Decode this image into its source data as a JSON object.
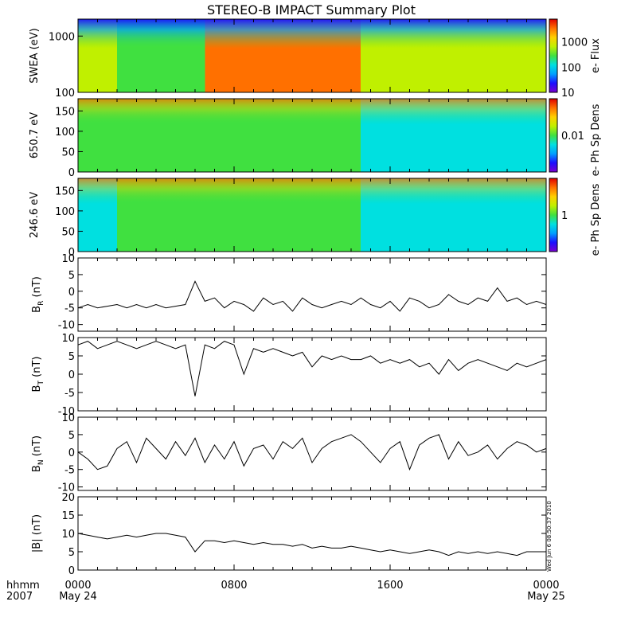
{
  "title": "STEREO-B IMPACT Summary Plot",
  "timestamp": "Wed Jun  6 08:50:37 2010",
  "time_axis": {
    "label_top": "hhmm",
    "label_bottom": "2007",
    "ticks": [
      {
        "time": "0000",
        "date": "May 24"
      },
      {
        "time": "0800",
        "date": ""
      },
      {
        "time": "1600",
        "date": ""
      },
      {
        "time": "0000",
        "date": "May 25"
      }
    ]
  },
  "colors": {
    "trace": "#000000",
    "axis": "#000000",
    "colorscale": [
      "#7a00d0",
      "#1a10ff",
      "#00a0ff",
      "#00e0e0",
      "#40e040",
      "#c0f000",
      "#ffd000",
      "#ff7000",
      "#e00000"
    ]
  },
  "chart_data": [
    {
      "type": "heatmap",
      "ylabel": "SWEA (eV)",
      "yscale": "log",
      "ylim": [
        100,
        2000
      ],
      "yticks": [
        "100",
        "1000"
      ],
      "colorbar": {
        "label": "e- Flux",
        "scale": "log",
        "range": [
          10,
          8000
        ],
        "ticks": [
          "10",
          "100",
          "1000"
        ]
      },
      "description_bands": [
        {
          "from_hour": 0,
          "to_hour": 2,
          "level": 0.62
        },
        {
          "from_hour": 2,
          "to_hour": 6.5,
          "level": 0.55
        },
        {
          "from_hour": 6.5,
          "to_hour": 14.5,
          "level": 0.92
        },
        {
          "from_hour": 14.5,
          "to_hour": 24,
          "level": 0.62
        }
      ]
    },
    {
      "type": "heatmap",
      "ylabel": "650.7 eV",
      "ylim": [
        0,
        180
      ],
      "yticks": [
        "0",
        "50",
        "100",
        "150"
      ],
      "colorbar": {
        "label": "e- Ph Sp Dens",
        "scale": "log",
        "ticks": [
          "0.01"
        ]
      },
      "description_bands": [
        {
          "from_hour": 0,
          "to_hour": 2,
          "level": 0.45
        },
        {
          "from_hour": 2,
          "to_hour": 6.5,
          "level": 0.5
        },
        {
          "from_hour": 6.5,
          "to_hour": 14.5,
          "level": 0.55
        },
        {
          "from_hour": 14.5,
          "to_hour": 24,
          "level": 0.33
        }
      ]
    },
    {
      "type": "heatmap",
      "ylabel": "246.6 eV",
      "ylim": [
        0,
        180
      ],
      "yticks": [
        "0",
        "50",
        "100",
        "150"
      ],
      "colorbar": {
        "label": "e- Ph Sp Dens",
        "scale": "log",
        "ticks": [
          "1"
        ]
      },
      "description_bands": [
        {
          "from_hour": 0,
          "to_hour": 2,
          "level": 0.42
        },
        {
          "from_hour": 2,
          "to_hour": 6.5,
          "level": 0.5
        },
        {
          "from_hour": 6.5,
          "to_hour": 14.5,
          "level": 0.55
        },
        {
          "from_hour": 14.5,
          "to_hour": 24,
          "level": 0.42
        }
      ]
    },
    {
      "type": "line",
      "ylabel_main": "B",
      "ylabel_sub": "R",
      "ylabel_unit": " (nT)",
      "ylim": [
        -12,
        10
      ],
      "yticks": [
        -10,
        -5,
        0,
        5,
        10
      ],
      "x_hours": [
        0,
        0.5,
        1,
        1.5,
        2,
        2.5,
        3,
        3.5,
        4,
        4.5,
        5,
        5.5,
        6,
        6.5,
        7,
        7.5,
        8,
        8.5,
        9,
        9.5,
        10,
        10.5,
        11,
        11.5,
        12,
        12.5,
        13,
        13.5,
        14,
        14.5,
        15,
        15.5,
        16,
        16.5,
        17,
        17.5,
        18,
        18.5,
        19,
        19.5,
        20,
        20.5,
        21,
        21.5,
        22,
        22.5,
        23,
        23.5,
        24
      ],
      "values": [
        -5,
        -4,
        -5,
        -4.5,
        -4,
        -5,
        -4,
        -5,
        -4,
        -5,
        -4.5,
        -4,
        3,
        -3,
        -2,
        -5,
        -3,
        -4,
        -6,
        -2,
        -4,
        -3,
        -6,
        -2,
        -4,
        -5,
        -4,
        -3,
        -4,
        -2,
        -4,
        -5,
        -3,
        -6,
        -2,
        -3,
        -5,
        -4,
        -1,
        -3,
        -4,
        -2,
        -3,
        1,
        -3,
        -2,
        -4,
        -3,
        -4
      ]
    },
    {
      "type": "line",
      "ylabel_main": "B",
      "ylabel_sub": "T",
      "ylabel_unit": " (nT)",
      "ylim": [
        -10,
        10
      ],
      "yticks": [
        -10,
        -5,
        0,
        5,
        10
      ],
      "x_hours": [
        0,
        0.5,
        1,
        1.5,
        2,
        2.5,
        3,
        3.5,
        4,
        4.5,
        5,
        5.5,
        6,
        6.5,
        7,
        7.5,
        8,
        8.5,
        9,
        9.5,
        10,
        10.5,
        11,
        11.5,
        12,
        12.5,
        13,
        13.5,
        14,
        14.5,
        15,
        15.5,
        16,
        16.5,
        17,
        17.5,
        18,
        18.5,
        19,
        19.5,
        20,
        20.5,
        21,
        21.5,
        22,
        22.5,
        23,
        23.5,
        24
      ],
      "values": [
        8,
        9,
        7,
        8,
        9,
        8,
        7,
        8,
        9,
        8,
        7,
        8,
        -6,
        8,
        7,
        9,
        8,
        0,
        7,
        6,
        7,
        6,
        5,
        6,
        2,
        5,
        4,
        5,
        4,
        4,
        5,
        3,
        4,
        3,
        4,
        2,
        3,
        0,
        4,
        1,
        3,
        4,
        3,
        2,
        1,
        3,
        2,
        3,
        4
      ]
    },
    {
      "type": "line",
      "ylabel_main": "B",
      "ylabel_sub": "N",
      "ylabel_unit": " (nT)",
      "ylim": [
        -11,
        10
      ],
      "yticks": [
        -10,
        -5,
        0,
        5,
        10
      ],
      "x_hours": [
        0,
        0.5,
        1,
        1.5,
        2,
        2.5,
        3,
        3.5,
        4,
        4.5,
        5,
        5.5,
        6,
        6.5,
        7,
        7.5,
        8,
        8.5,
        9,
        9.5,
        10,
        10.5,
        11,
        11.5,
        12,
        12.5,
        13,
        13.5,
        14,
        14.5,
        15,
        15.5,
        16,
        16.5,
        17,
        17.5,
        18,
        18.5,
        19,
        19.5,
        20,
        20.5,
        21,
        21.5,
        22,
        22.5,
        23,
        23.5,
        24
      ],
      "values": [
        0,
        -2,
        -5,
        -4,
        1,
        3,
        -3,
        4,
        1,
        -2,
        3,
        -1,
        4,
        -3,
        2,
        -2,
        3,
        -4,
        1,
        2,
        -2,
        3,
        1,
        4,
        -3,
        1,
        3,
        4,
        5,
        3,
        0,
        -3,
        1,
        3,
        -5,
        2,
        4,
        5,
        -2,
        3,
        -1,
        0,
        2,
        -2,
        1,
        3,
        2,
        0,
        1
      ]
    },
    {
      "type": "line",
      "ylabel_main": "|B|",
      "ylabel_sub": "",
      "ylabel_unit": " (nT)",
      "ylim": [
        0,
        20
      ],
      "yticks": [
        0,
        5,
        10,
        15,
        20
      ],
      "x_hours": [
        0,
        0.5,
        1,
        1.5,
        2,
        2.5,
        3,
        3.5,
        4,
        4.5,
        5,
        5.5,
        6,
        6.5,
        7,
        7.5,
        8,
        8.5,
        9,
        9.5,
        10,
        10.5,
        11,
        11.5,
        12,
        12.5,
        13,
        13.5,
        14,
        14.5,
        15,
        15.5,
        16,
        16.5,
        17,
        17.5,
        18,
        18.5,
        19,
        19.5,
        20,
        20.5,
        21,
        21.5,
        22,
        22.5,
        23,
        23.5,
        24
      ],
      "values": [
        10,
        9.5,
        9,
        8.5,
        9,
        9.5,
        9,
        9.5,
        10,
        10,
        9.5,
        9,
        5,
        8,
        8,
        7.5,
        8,
        7.5,
        7,
        7.5,
        7,
        7,
        6.5,
        7,
        6,
        6.5,
        6,
        6,
        6.5,
        6,
        5.5,
        5,
        5.5,
        5,
        4.5,
        5,
        5.5,
        5,
        4,
        5,
        4.5,
        5,
        4.5,
        5,
        4.5,
        4,
        5,
        5,
        5
      ]
    }
  ]
}
